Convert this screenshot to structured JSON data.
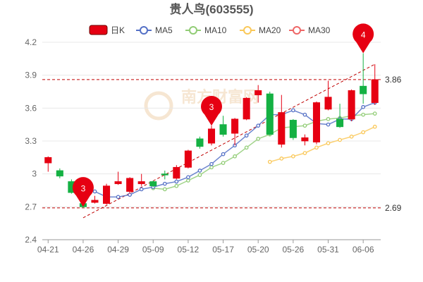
{
  "chart_data": {
    "type": "candlestick",
    "title": "贵人鸟(603555)",
    "legend": [
      {
        "key": "k",
        "label": "日K",
        "color": "#e60012"
      },
      {
        "key": "ma5",
        "label": "MA5",
        "color": "#5470c6"
      },
      {
        "key": "ma10",
        "label": "MA10",
        "color": "#91cc75"
      },
      {
        "key": "ma20",
        "label": "MA20",
        "color": "#fac858"
      },
      {
        "key": "ma30",
        "label": "MA30",
        "color": "#ee6666"
      }
    ],
    "colors": {
      "up": "#e60012",
      "down": "#14b143",
      "grid": "#e8e8e8",
      "axis": "#999999",
      "ref": "#c00000"
    },
    "ylim": [
      2.4,
      4.2
    ],
    "yticks": [
      2.4,
      2.7,
      3,
      3.3,
      3.6,
      3.9,
      4.2
    ],
    "xticks": [
      {
        "label": "04-21",
        "index": 0
      },
      {
        "label": "04-26",
        "index": 3
      },
      {
        "label": "04-29",
        "index": 6
      },
      {
        "label": "05-09",
        "index": 9
      },
      {
        "label": "05-12",
        "index": 12
      },
      {
        "label": "05-17",
        "index": 15
      },
      {
        "label": "05-20",
        "index": 18
      },
      {
        "label": "05-26",
        "index": 21
      },
      {
        "label": "05-31",
        "index": 24
      },
      {
        "label": "06-06",
        "index": 27
      }
    ],
    "candles": [
      {
        "o": 3.1,
        "c": 3.15,
        "l": 3.02,
        "h": 3.16
      },
      {
        "o": 3.03,
        "c": 2.98,
        "l": 2.96,
        "h": 3.05
      },
      {
        "o": 2.93,
        "c": 2.83,
        "l": 2.82,
        "h": 2.95
      },
      {
        "o": 2.73,
        "c": 2.7,
        "l": 2.69,
        "h": 2.82
      },
      {
        "o": 2.74,
        "c": 2.76,
        "l": 2.73,
        "h": 2.8
      },
      {
        "o": 2.73,
        "c": 2.89,
        "l": 2.72,
        "h": 2.91
      },
      {
        "o": 2.91,
        "c": 2.93,
        "l": 2.9,
        "h": 3.02
      },
      {
        "o": 2.84,
        "c": 2.96,
        "l": 2.82,
        "h": 2.97
      },
      {
        "o": 2.91,
        "c": 2.93,
        "l": 2.89,
        "h": 3.0
      },
      {
        "o": 2.93,
        "c": 2.89,
        "l": 2.88,
        "h": 2.94
      },
      {
        "o": 3.0,
        "c": 2.99,
        "l": 2.95,
        "h": 3.03
      },
      {
        "o": 2.96,
        "c": 3.06,
        "l": 2.95,
        "h": 3.08
      },
      {
        "o": 3.06,
        "c": 3.21,
        "l": 3.05,
        "h": 3.22
      },
      {
        "o": 3.32,
        "c": 3.25,
        "l": 3.23,
        "h": 3.34
      },
      {
        "o": 3.28,
        "c": 3.41,
        "l": 3.26,
        "h": 3.44
      },
      {
        "o": 3.45,
        "c": 3.36,
        "l": 3.34,
        "h": 3.53
      },
      {
        "o": 3.37,
        "c": 3.5,
        "l": 3.26,
        "h": 3.51
      },
      {
        "o": 3.5,
        "c": 3.69,
        "l": 3.49,
        "h": 3.7
      },
      {
        "o": 3.72,
        "c": 3.76,
        "l": 3.65,
        "h": 3.81
      },
      {
        "o": 3.73,
        "c": 3.36,
        "l": 3.35,
        "h": 3.75
      },
      {
        "o": 3.27,
        "c": 3.56,
        "l": 3.24,
        "h": 3.72
      },
      {
        "o": 3.49,
        "c": 3.33,
        "l": 3.31,
        "h": 3.5
      },
      {
        "o": 3.3,
        "c": 3.33,
        "l": 3.26,
        "h": 3.36
      },
      {
        "o": 3.29,
        "c": 3.65,
        "l": 3.27,
        "h": 3.66
      },
      {
        "o": 3.59,
        "c": 3.7,
        "l": 3.58,
        "h": 3.85
      },
      {
        "o": 3.5,
        "c": 3.43,
        "l": 3.42,
        "h": 3.64
      },
      {
        "o": 3.5,
        "c": 3.76,
        "l": 3.48,
        "h": 3.77
      },
      {
        "o": 3.8,
        "c": 3.73,
        "l": 3.64,
        "h": 4.1
      },
      {
        "o": 3.65,
        "c": 3.86,
        "l": 3.63,
        "h": 4.0
      }
    ],
    "ma5": [
      null,
      null,
      null,
      null,
      2.84,
      2.79,
      2.79,
      2.81,
      2.86,
      2.88,
      2.91,
      2.93,
      2.97,
      3.03,
      3.09,
      3.18,
      3.26,
      3.35,
      3.44,
      3.54,
      3.54,
      3.58,
      3.54,
      3.46,
      3.45,
      3.5,
      3.5,
      3.61,
      3.65
    ],
    "ma10": [
      null,
      null,
      null,
      null,
      null,
      null,
      null,
      null,
      null,
      2.87,
      2.86,
      2.89,
      2.94,
      2.99,
      3.06,
      3.1,
      3.16,
      3.24,
      3.32,
      3.36,
      3.42,
      3.43,
      3.44,
      3.48,
      3.5,
      3.51,
      3.53,
      3.54,
      3.55
    ],
    "ma20": [
      null,
      null,
      null,
      null,
      null,
      null,
      null,
      null,
      null,
      null,
      null,
      null,
      null,
      null,
      null,
      null,
      null,
      null,
      null,
      3.11,
      3.14,
      3.16,
      3.19,
      3.24,
      3.28,
      3.31,
      3.34,
      3.38,
      3.43
    ],
    "ref_lines": [
      {
        "value": 3.86,
        "label": "3.86"
      },
      {
        "value": 2.69,
        "label": "2.69"
      }
    ],
    "pins": [
      {
        "index": 3,
        "value": 2.7,
        "label": "3"
      },
      {
        "index": 14,
        "value": 3.44,
        "label": "3"
      },
      {
        "index": 27,
        "value": 4.1,
        "label": "4"
      }
    ],
    "trend": {
      "from": {
        "index": 3,
        "value": 2.6
      },
      "to": {
        "index": 28,
        "value": 4.0
      }
    },
    "watermark": "南方财富网"
  }
}
